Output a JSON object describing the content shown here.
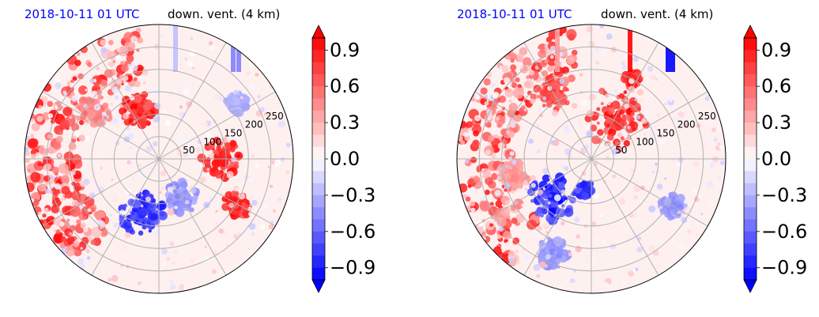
{
  "colors": {
    "date_title": "#0000ff",
    "positive": "#ff0000",
    "negative": "#0000ff",
    "background_field": "#fff0f0",
    "grid": "#b0b0b0"
  },
  "chart_data": [
    {
      "type": "heatmap",
      "projection": "polar",
      "title_left": "2018-10-11 01 UTC",
      "title_right": "down. vent. (4 km)",
      "radial_ticks": [
        "50",
        "100",
        "150",
        "200",
        "250"
      ],
      "radial_values": [
        50,
        100,
        150,
        200,
        250
      ],
      "rlim": [
        0,
        300
      ],
      "grid": true,
      "colorbar": {
        "ticks": [
          "0.9",
          "0.6",
          "0.3",
          "0.0",
          "−0.3",
          "−0.6",
          "−0.9"
        ],
        "values": [
          0.9,
          0.6,
          0.3,
          0.0,
          -0.3,
          -0.6,
          -0.9
        ],
        "range": [
          -1.0,
          1.0
        ],
        "extend": "both"
      }
    },
    {
      "type": "heatmap",
      "projection": "polar",
      "title_left": "2018-10-11 01 UTC",
      "title_right": "down. vent. (4 km)",
      "radial_ticks": [
        "50",
        "100",
        "150",
        "200",
        "250"
      ],
      "radial_values": [
        50,
        100,
        150,
        200,
        250
      ],
      "rlim": [
        0,
        300
      ],
      "grid": true,
      "colorbar": {
        "ticks": [
          "0.9",
          "0.6",
          "0.3",
          "0.0",
          "−0.3",
          "−0.6",
          "−0.9"
        ],
        "values": [
          0.9,
          0.6,
          0.3,
          0.0,
          -0.3,
          -0.6,
          -0.9
        ],
        "range": [
          -1.0,
          1.0
        ],
        "extend": "both"
      }
    }
  ]
}
